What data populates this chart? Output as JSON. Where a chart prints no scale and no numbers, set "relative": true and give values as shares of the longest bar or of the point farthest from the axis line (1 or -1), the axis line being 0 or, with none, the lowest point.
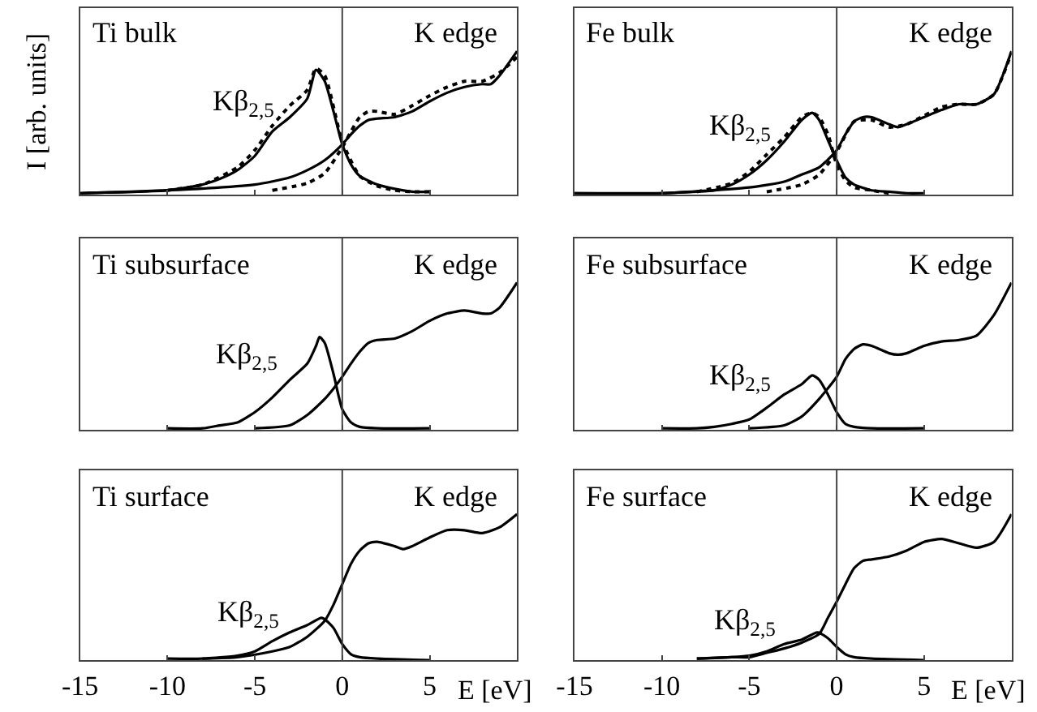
{
  "chart_data": [
    {
      "type": "line",
      "title": "Ti bulk",
      "ylabel": "I [arb. units]",
      "xlim": [
        -15,
        10
      ],
      "xticks": [
        -15,
        -10,
        -5,
        0,
        5
      ],
      "tick_labels": false,
      "relative": true,
      "ref_lines": [
        {
          "axis": "x",
          "value": 0
        }
      ],
      "series": [
        {
          "name": "Kβ$_{2,5}$",
          "color": "#000000",
          "line_style": "solid",
          "x": [
            -15,
            -10,
            -8,
            -7,
            -6,
            -5,
            -4,
            -3,
            -2,
            -1.5,
            -1,
            -0.5,
            0,
            0.5,
            1,
            2,
            3,
            4,
            5
          ],
          "values": [
            0.01,
            0.03,
            0.07,
            0.11,
            0.17,
            0.27,
            0.44,
            0.54,
            0.67,
            0.87,
            0.79,
            0.58,
            0.35,
            0.21,
            0.13,
            0.07,
            0.04,
            0.02,
            0.02
          ]
        },
        {
          "name": "K edge",
          "color": "#000000",
          "line_style": "solid",
          "x": [
            -15,
            -10,
            -5,
            -3,
            -2,
            -1,
            0,
            0.5,
            1,
            1.5,
            2,
            3,
            4,
            5,
            6,
            7,
            8,
            8.5,
            9,
            10
          ],
          "values": [
            0.01,
            0.03,
            0.07,
            0.12,
            0.17,
            0.24,
            0.35,
            0.42,
            0.48,
            0.52,
            0.53,
            0.54,
            0.58,
            0.65,
            0.71,
            0.75,
            0.77,
            0.77,
            0.83,
            1
          ]
        },
        {
          "color": "#000000",
          "line_style": "dotted",
          "x": [
            -10,
            -8,
            -6,
            -5,
            -4,
            -3,
            -2,
            -1.5,
            -1,
            0,
            1,
            2,
            3,
            4,
            5
          ],
          "values": [
            0.03,
            0.07,
            0.19,
            0.31,
            0.48,
            0.62,
            0.73,
            0.88,
            0.83,
            0.37,
            0.13,
            0.06,
            0.03,
            0.02,
            0.02
          ]
        },
        {
          "color": "#000000",
          "line_style": "dotted",
          "x": [
            -4,
            -2,
            -1,
            0,
            0.5,
            1,
            1.5,
            2,
            3,
            4,
            5,
            6,
            7,
            8,
            9,
            10
          ],
          "values": [
            0.03,
            0.08,
            0.15,
            0.33,
            0.44,
            0.54,
            0.58,
            0.58,
            0.56,
            0.62,
            0.69,
            0.75,
            0.79,
            0.79,
            0.85,
            0.96
          ]
        }
      ]
    },
    {
      "type": "line",
      "title": "Fe bulk",
      "xlim": [
        -15,
        10
      ],
      "xticks": [
        -15,
        -10,
        -5,
        0,
        5
      ],
      "tick_labels": false,
      "relative": true,
      "ref_lines": [
        {
          "axis": "x",
          "value": 0
        }
      ],
      "series": [
        {
          "name": "Kβ$_{2,5}$",
          "color": "#000000",
          "line_style": "solid",
          "x": [
            -15,
            -10,
            -8,
            -7,
            -6,
            -5,
            -4,
            -3,
            -2,
            -1.4,
            -1,
            -0.5,
            0,
            0.5,
            1,
            2,
            3,
            4,
            5
          ],
          "values": [
            0.01,
            0.01,
            0.02,
            0.03,
            0.07,
            0.14,
            0.24,
            0.37,
            0.52,
            0.57,
            0.52,
            0.38,
            0.24,
            0.12,
            0.07,
            0.03,
            0.02,
            0.01,
            0.01
          ]
        },
        {
          "name": "K edge",
          "color": "#000000",
          "line_style": "solid",
          "x": [
            -15,
            -10,
            -5,
            -3,
            -2,
            -1,
            0,
            0.5,
            1,
            1.5,
            2,
            3,
            3.5,
            4,
            5,
            6,
            7,
            8,
            9,
            10
          ],
          "values": [
            0.01,
            0.01,
            0.05,
            0.09,
            0.14,
            0.19,
            0.31,
            0.42,
            0.51,
            0.54,
            0.54,
            0.49,
            0.47,
            0.49,
            0.54,
            0.59,
            0.63,
            0.63,
            0.7,
            1
          ]
        },
        {
          "color": "#000000",
          "line_style": "dotted",
          "x": [
            -8,
            -6,
            -5,
            -4,
            -3,
            -2,
            -1.4,
            -1,
            -0.5,
            0,
            0.5,
            1,
            2,
            3
          ],
          "values": [
            0.02,
            0.08,
            0.16,
            0.28,
            0.4,
            0.54,
            0.57,
            0.54,
            0.42,
            0.21,
            0.1,
            0.05,
            0.03,
            0.01
          ]
        },
        {
          "color": "#000000",
          "line_style": "dotted",
          "x": [
            -4,
            -2,
            -1,
            0,
            1,
            2,
            3,
            4,
            5,
            6,
            7,
            8,
            9,
            10
          ],
          "values": [
            0.02,
            0.07,
            0.14,
            0.3,
            0.51,
            0.52,
            0.47,
            0.49,
            0.55,
            0.61,
            0.63,
            0.63,
            0.7,
            0.99
          ]
        }
      ]
    },
    {
      "type": "line",
      "title": "Ti subsurface",
      "xlim": [
        -15,
        10
      ],
      "xticks": [
        -15,
        -10,
        -5,
        0,
        5
      ],
      "tick_labels": false,
      "relative": true,
      "ref_lines": [
        {
          "axis": "x",
          "value": 0
        }
      ],
      "series": [
        {
          "name": "Kβ$_{2,5}$",
          "color": "#000000",
          "line_style": "solid",
          "x": [
            -10,
            -8,
            -7,
            -6,
            -5,
            -4,
            -3,
            -2,
            -1.5,
            -1.3,
            -1,
            -0.5,
            0,
            0.5,
            1,
            2,
            5
          ],
          "values": [
            0.01,
            0.01,
            0.03,
            0.05,
            0.12,
            0.22,
            0.34,
            0.45,
            0.57,
            0.63,
            0.59,
            0.38,
            0.14,
            0.05,
            0.02,
            0.01,
            0.01
          ]
        },
        {
          "name": "K edge",
          "color": "#000000",
          "line_style": "solid",
          "x": [
            -5,
            -3,
            -2,
            -1,
            -0.5,
            0,
            0.5,
            1,
            1.5,
            2,
            3,
            4,
            5,
            6,
            7,
            8,
            8.5,
            9,
            10
          ],
          "values": [
            0.01,
            0.03,
            0.1,
            0.21,
            0.28,
            0.36,
            0.45,
            0.53,
            0.59,
            0.61,
            0.62,
            0.67,
            0.74,
            0.79,
            0.81,
            0.79,
            0.79,
            0.83,
            1
          ]
        }
      ]
    },
    {
      "type": "line",
      "title": "Fe subsurface",
      "xlim": [
        -15,
        10
      ],
      "xticks": [
        -15,
        -10,
        -5,
        0,
        5
      ],
      "tick_labels": false,
      "relative": true,
      "ref_lines": [
        {
          "axis": "x",
          "value": 0
        }
      ],
      "series": [
        {
          "name": "Kβ$_{2,5}$",
          "color": "#000000",
          "line_style": "solid",
          "x": [
            -10,
            -8,
            -7,
            -6,
            -5,
            -4,
            -3,
            -2,
            -1.4,
            -1,
            -0.5,
            0,
            0.5,
            1,
            2,
            5
          ],
          "values": [
            0.01,
            0.01,
            0.02,
            0.04,
            0.07,
            0.15,
            0.24,
            0.31,
            0.37,
            0.34,
            0.24,
            0.12,
            0.04,
            0.02,
            0.01,
            0.01
          ]
        },
        {
          "name": "K edge",
          "color": "#000000",
          "line_style": "solid",
          "x": [
            -5,
            -3,
            -2,
            -1,
            0,
            0.5,
            1,
            1.5,
            2,
            3,
            3.5,
            4,
            5,
            6,
            7,
            8,
            9,
            10
          ],
          "values": [
            0.01,
            0.03,
            0.09,
            0.21,
            0.36,
            0.48,
            0.55,
            0.58,
            0.57,
            0.52,
            0.51,
            0.52,
            0.57,
            0.6,
            0.61,
            0.64,
            0.78,
            1
          ]
        }
      ]
    },
    {
      "type": "line",
      "title": "Ti surface",
      "xlabel": "E [eV]",
      "xlim": [
        -15,
        10
      ],
      "xticks": [
        -15,
        -10,
        -5,
        0,
        5
      ],
      "tick_labels": "x",
      "relative": true,
      "ref_lines": [
        {
          "axis": "x",
          "value": 0
        }
      ],
      "series": [
        {
          "name": "Kβ$_{2,5}$",
          "color": "#000000",
          "line_style": "solid",
          "x": [
            -10,
            -8,
            -6,
            -5,
            -4,
            -3,
            -2,
            -1.2,
            -1,
            -0.5,
            0,
            0.5,
            1,
            2,
            5
          ],
          "values": [
            0.01,
            0.01,
            0.03,
            0.06,
            0.13,
            0.19,
            0.24,
            0.29,
            0.28,
            0.22,
            0.11,
            0.04,
            0.02,
            0.01,
            0
          ]
        },
        {
          "name": "K edge",
          "color": "#000000",
          "line_style": "solid",
          "x": [
            -8,
            -6,
            -4,
            -3,
            -2,
            -1,
            -0.5,
            0,
            0.5,
            1,
            1.5,
            2,
            3,
            3.5,
            4,
            5,
            6,
            7,
            8,
            9,
            10
          ],
          "values": [
            0.01,
            0.02,
            0.06,
            0.09,
            0.16,
            0.27,
            0.38,
            0.52,
            0.66,
            0.75,
            0.8,
            0.81,
            0.78,
            0.76,
            0.78,
            0.84,
            0.89,
            0.89,
            0.87,
            0.91,
            1
          ]
        }
      ]
    },
    {
      "type": "line",
      "title": "Fe surface",
      "xlabel": "E [eV]",
      "xlim": [
        -15,
        10
      ],
      "xticks": [
        -15,
        -10,
        -5,
        0,
        5
      ],
      "tick_labels": "x",
      "relative": true,
      "ref_lines": [
        {
          "axis": "x",
          "value": 0
        }
      ],
      "series": [
        {
          "name": "Kβ$_{2,5}$",
          "color": "#000000",
          "line_style": "solid",
          "x": [
            -8,
            -6,
            -5,
            -4,
            -3,
            -2,
            -1.1,
            -0.5,
            0,
            0.5,
            1,
            2,
            5
          ],
          "values": [
            0.01,
            0.02,
            0.03,
            0.06,
            0.11,
            0.14,
            0.19,
            0.15,
            0.09,
            0.04,
            0.02,
            0.01,
            0
          ]
        },
        {
          "name": "K edge",
          "color": "#000000",
          "line_style": "solid",
          "x": [
            -8,
            -6,
            -5,
            -4,
            -3,
            -2,
            -1,
            -0.5,
            0,
            0.5,
            1,
            1.5,
            2,
            3,
            4,
            5,
            6,
            7,
            8,
            9,
            10
          ],
          "values": [
            0.01,
            0.02,
            0.02,
            0.05,
            0.08,
            0.12,
            0.18,
            0.29,
            0.4,
            0.52,
            0.63,
            0.68,
            0.69,
            0.71,
            0.75,
            0.81,
            0.83,
            0.8,
            0.77,
            0.81,
            1
          ]
        }
      ]
    }
  ]
}
